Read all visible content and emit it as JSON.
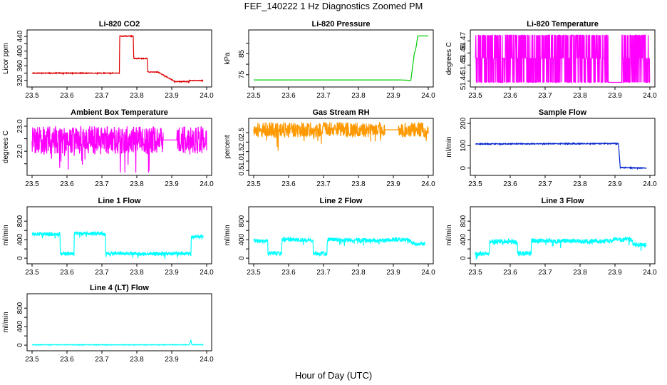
{
  "figure": {
    "title": "FEF_140222  1 Hz Diagnostics Zoomed PM",
    "xlabel": "Hour of Day (UTC)"
  },
  "chart_data": [
    {
      "type": "line",
      "title": "Li-820 CO2",
      "ylabel": "Licor ppm",
      "color": "#dd0000",
      "xlim": [
        23.5,
        24.0
      ],
      "ylim": [
        310,
        450
      ],
      "xticks": [
        "23.5",
        "23.6",
        "23.7",
        "23.8",
        "23.9",
        "24.0"
      ],
      "yticks": [
        320,
        340,
        360,
        380,
        400,
        420,
        440
      ],
      "ytick_labels": [
        "320",
        "",
        "360",
        "",
        "400",
        "",
        "440"
      ],
      "noise": 1.0,
      "series": [
        {
          "x": [
            23.5,
            23.75,
            23.751,
            23.79,
            23.791,
            23.83,
            23.831,
            23.86,
            23.91,
            23.91,
            23.95,
            23.951,
            23.99
          ],
          "y": [
            340,
            340,
            441,
            441,
            380,
            380,
            343,
            343,
            317,
            317,
            317,
            320,
            320
          ]
        }
      ]
    },
    {
      "type": "line",
      "title": "Li-820 Pressure",
      "ylabel": "kPa",
      "color": "#00cc00",
      "xlim": [
        23.5,
        24.0
      ],
      "ylim": [
        70.5,
        95
      ],
      "xticks": [
        "23.5",
        "23.6",
        "23.7",
        "23.8",
        "23.9",
        "24.0"
      ],
      "yticks": [
        75,
        80,
        85,
        90
      ],
      "ytick_labels": [
        "75",
        "",
        "85",
        ""
      ],
      "noise": 0.0,
      "series": [
        {
          "x": [
            23.5,
            23.92,
            23.95,
            23.96,
            23.965,
            23.97,
            24.0
          ],
          "y": [
            72.5,
            72.5,
            72.3,
            85,
            88,
            93.5,
            93.5
          ]
        }
      ]
    },
    {
      "type": "line",
      "title": "Li-820 Temperature",
      "ylabel": "degrees C",
      "color": "#ff00ff",
      "xlim": [
        23.5,
        24.0
      ],
      "ylim": [
        51.4375,
        51.48
      ],
      "xticks": [
        "23.5",
        "23.6",
        "23.7",
        "23.8",
        "23.9",
        "24.0"
      ],
      "yticks": [
        51.44,
        51.4533,
        51.4633,
        51.4733
      ],
      "ytick_labels": [
        "51.44",
        "51.45",
        "51.46",
        "51.47"
      ],
      "levels": [
        51.439,
        51.459,
        51.478
      ],
      "gap": [
        23.88,
        23.92
      ],
      "series": [
        {
          "x": [
            23.5,
            24.0
          ],
          "y": [
            51.459,
            51.459
          ]
        }
      ]
    },
    {
      "type": "line",
      "title": "Ambient Box Temperature",
      "ylabel": "degrees C",
      "color": "#ff00ff",
      "xlim": [
        23.5,
        24.0
      ],
      "ylim": [
        21.15,
        23.2
      ],
      "xticks": [
        "23.5",
        "23.6",
        "23.7",
        "23.8",
        "23.9",
        "24.0"
      ],
      "yticks": [
        21.5,
        22.0,
        22.5,
        23.0
      ],
      "ytick_labels": [
        "",
        "22.0",
        "",
        "23.0"
      ],
      "noise": 0.55,
      "gap": [
        23.875,
        23.915
      ],
      "series": [
        {
          "x": [
            23.5,
            24.0
          ],
          "y": [
            22.45,
            22.45
          ]
        }
      ]
    },
    {
      "type": "line",
      "title": "Gas Stream RH",
      "ylabel": "percent",
      "color": "#ff9900",
      "xlim": [
        23.5,
        24.0
      ],
      "ylim": [
        0.4,
        3.1
      ],
      "xticks": [
        "23.5",
        "23.6",
        "23.7",
        "23.8",
        "23.9",
        "24.0"
      ],
      "yticks": [
        0.5,
        1.0,
        1.5,
        2.0,
        2.5
      ],
      "ytick_labels": [
        "0.5",
        "1.0",
        "1.5",
        "2.0",
        "2.5"
      ],
      "noise": 0.4,
      "gap": [
        23.875,
        23.915
      ],
      "series": [
        {
          "x": [
            23.5,
            24.0
          ],
          "y": [
            2.65,
            2.65
          ]
        }
      ]
    },
    {
      "type": "line",
      "title": "Sample Flow",
      "ylabel": "ml/min",
      "color": "#0022cc",
      "xlim": [
        23.5,
        24.0
      ],
      "ylim": [
        -20,
        210
      ],
      "xticks": [
        "23.5",
        "23.6",
        "23.7",
        "23.8",
        "23.9",
        "24.0"
      ],
      "yticks": [
        0,
        100,
        200
      ],
      "ytick_labels": [
        "0",
        "100",
        "200"
      ],
      "noise": 2.0,
      "series": [
        {
          "x": [
            23.5,
            23.91,
            23.915,
            23.99
          ],
          "y": [
            108,
            110,
            2,
            0
          ]
        }
      ]
    },
    {
      "type": "line",
      "title": "Line 1 Flow",
      "ylabel": "ml/min",
      "color": "#00ffff",
      "xlim": [
        23.5,
        24.0
      ],
      "ylim": [
        -60,
        1050
      ],
      "xticks": [
        "23.5",
        "23.6",
        "23.7",
        "23.8",
        "23.9",
        "24.0"
      ],
      "yticks": [
        0,
        200,
        400,
        600,
        800
      ],
      "ytick_labels": [
        "0",
        "",
        "400",
        "",
        "800"
      ],
      "noise": 40,
      "series": [
        {
          "x": [
            23.5,
            23.58,
            23.581,
            23.62,
            23.621,
            23.71,
            23.711,
            23.955,
            23.956,
            23.99
          ],
          "y": [
            520,
            520,
            100,
            100,
            530,
            530,
            100,
            100,
            460,
            460
          ]
        }
      ]
    },
    {
      "type": "line",
      "title": "Line 2 Flow",
      "ylabel": "ml/min",
      "color": "#00ffff",
      "xlim": [
        23.5,
        24.0
      ],
      "ylim": [
        -60,
        1050
      ],
      "xticks": [
        "23.5",
        "23.6",
        "23.7",
        "23.8",
        "23.9",
        "24.0"
      ],
      "yticks": [
        0,
        200,
        400,
        600,
        800
      ],
      "ytick_labels": [
        "0",
        "",
        "400",
        "",
        "800"
      ],
      "noise": 45,
      "series": [
        {
          "x": [
            23.5,
            23.54,
            23.541,
            23.58,
            23.581,
            23.67,
            23.671,
            23.71,
            23.711,
            23.87,
            23.9,
            23.95,
            23.951,
            23.99
          ],
          "y": [
            370,
            370,
            100,
            100,
            420,
            380,
            100,
            100,
            400,
            380,
            400,
            400,
            320,
            310
          ]
        }
      ]
    },
    {
      "type": "line",
      "title": "Line 3 Flow",
      "ylabel": "ml/min",
      "color": "#00ffff",
      "xlim": [
        23.5,
        24.0
      ],
      "ylim": [
        -60,
        1050
      ],
      "xticks": [
        "23.5",
        "23.6",
        "23.7",
        "23.8",
        "23.9",
        "24.0"
      ],
      "yticks": [
        0,
        200,
        400,
        600,
        800
      ],
      "ytick_labels": [
        "0",
        "",
        "400",
        "",
        "800"
      ],
      "noise": 50,
      "series": [
        {
          "x": [
            23.5,
            23.54,
            23.541,
            23.62,
            23.621,
            23.66,
            23.661,
            23.87,
            23.9,
            23.95,
            23.951,
            23.99
          ],
          "y": [
            100,
            100,
            370,
            360,
            100,
            100,
            380,
            360,
            400,
            400,
            300,
            280
          ]
        }
      ]
    },
    {
      "type": "line",
      "title": "Line 4 (LT) Flow",
      "ylabel": "ml/min",
      "color": "#00ffff",
      "xlim": [
        23.5,
        24.0
      ],
      "ylim": [
        -60,
        1050
      ],
      "xticks": [
        "23.5",
        "23.6",
        "23.7",
        "23.8",
        "23.9",
        "24.0"
      ],
      "yticks": [
        0,
        200,
        400,
        600,
        800
      ],
      "ytick_labels": [
        "0",
        "",
        "400",
        "",
        "800"
      ],
      "noise": 5,
      "series": [
        {
          "x": [
            23.5,
            23.95,
            23.955,
            23.957,
            23.96,
            23.99
          ],
          "y": [
            8,
            8,
            110,
            15,
            10,
            10
          ]
        }
      ]
    }
  ]
}
